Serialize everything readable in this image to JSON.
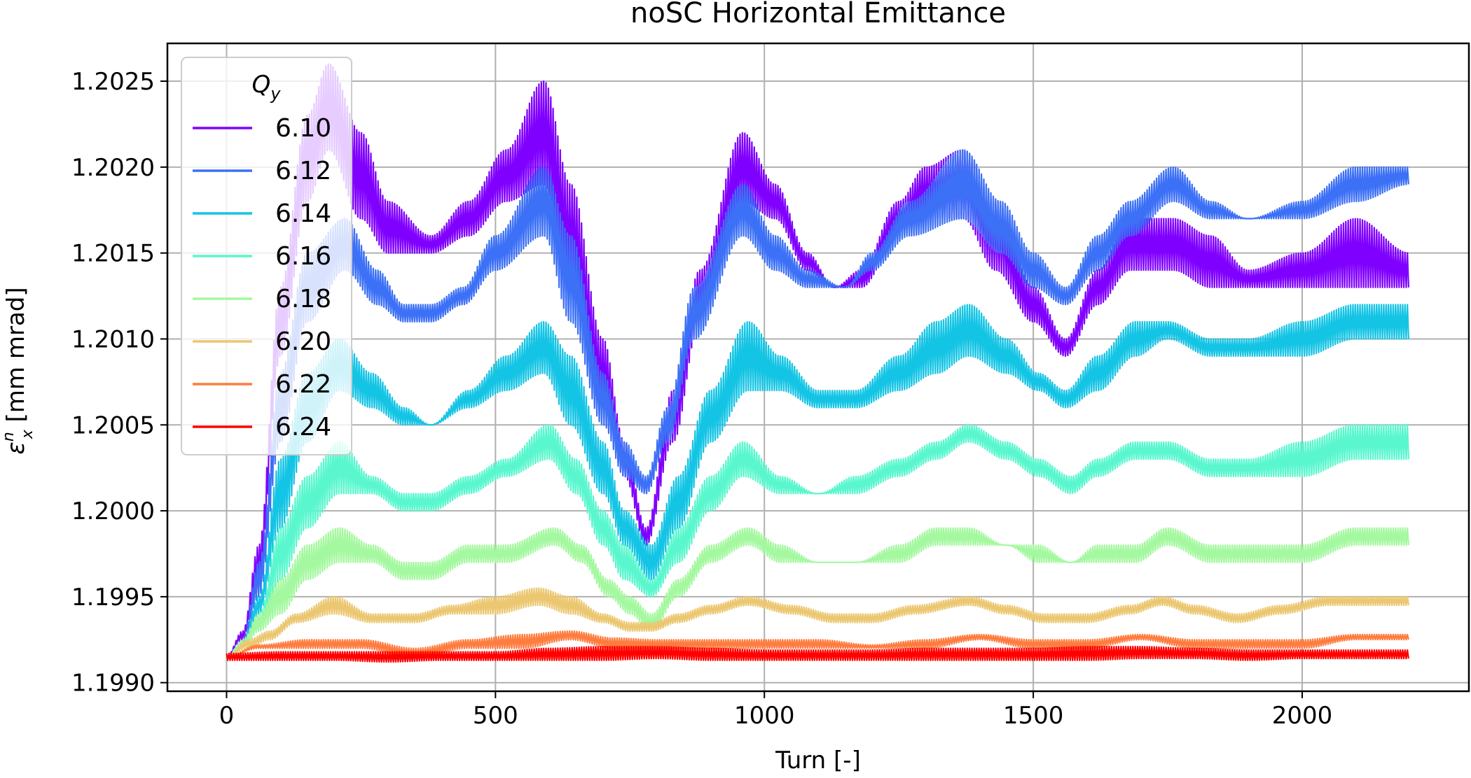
{
  "chart_data": {
    "type": "line",
    "title": "noSC Horizontal Emittance",
    "xlabel": "Turn [-]",
    "ylabel_symbol": "ε",
    "ylabel_sub": "x",
    "ylabel_sup": "n",
    "ylabel_unit": " [mm mrad]",
    "xlim": [
      -110,
      2310
    ],
    "ylim": [
      1.19895,
      1.20272
    ],
    "xticks": [
      0,
      500,
      1000,
      1500,
      2000
    ],
    "xtick_labels": [
      "0",
      "500",
      "1000",
      "1500",
      "2000"
    ],
    "yticks": [
      1.199,
      1.1995,
      1.2,
      1.2005,
      1.201,
      1.2015,
      1.202,
      1.2025
    ],
    "ytick_labels": [
      "1.1990",
      "1.1995",
      "1.2000",
      "1.2005",
      "1.2010",
      "1.2015",
      "1.2020",
      "1.2025"
    ],
    "grid": true,
    "legend": {
      "title_symbol": "Q",
      "title_sub": "y",
      "location": "upper left"
    },
    "series": [
      {
        "name": "6.10",
        "color": "#8000ff",
        "x": [
          0,
          30,
          60,
          100,
          150,
          190,
          250,
          300,
          380,
          450,
          520,
          590,
          640,
          700,
          740,
          780,
          830,
          880,
          960,
          1020,
          1080,
          1130,
          1180,
          1250,
          1300,
          1370,
          1430,
          1500,
          1560,
          1620,
          1680,
          1760,
          1830,
          1900,
          2000,
          2100,
          2200
        ],
        "lower": [
          1.19915,
          1.19925,
          1.1996,
          1.2009,
          1.2018,
          1.2021,
          1.2017,
          1.2015,
          1.2015,
          1.2016,
          1.2018,
          1.2019,
          1.2013,
          1.2006,
          1.2002,
          1.1998,
          1.2004,
          1.2011,
          1.2018,
          1.2017,
          1.2014,
          1.2013,
          1.2013,
          1.2016,
          1.2017,
          1.2017,
          1.2014,
          1.2011,
          1.2009,
          1.2012,
          1.2014,
          1.2014,
          1.2013,
          1.2013,
          1.2013,
          1.2013,
          1.2013
        ],
        "upper": [
          1.19915,
          1.1993,
          1.1998,
          1.2013,
          1.2023,
          1.2026,
          1.2022,
          1.2018,
          1.2016,
          1.2018,
          1.2021,
          1.2025,
          1.2019,
          1.201,
          1.2004,
          1.1999,
          1.2007,
          1.2014,
          1.2022,
          1.2019,
          1.2015,
          1.2013,
          1.2014,
          1.2018,
          1.202,
          1.2021,
          1.2018,
          1.2013,
          1.201,
          1.2014,
          1.2017,
          1.2017,
          1.2016,
          1.2014,
          1.2015,
          1.2017,
          1.2015
        ]
      },
      {
        "name": "6.12",
        "color": "#3c70f6",
        "x": [
          0,
          30,
          60,
          100,
          150,
          220,
          280,
          330,
          380,
          440,
          500,
          590,
          640,
          700,
          740,
          780,
          820,
          870,
          960,
          1020,
          1080,
          1150,
          1200,
          1270,
          1370,
          1440,
          1500,
          1560,
          1620,
          1680,
          1760,
          1830,
          1900,
          2000,
          2100,
          2200
        ],
        "lower": [
          1.19915,
          1.1992,
          1.1995,
          1.2004,
          1.2011,
          1.2014,
          1.2012,
          1.2011,
          1.2011,
          1.2012,
          1.2014,
          1.2016,
          1.2011,
          1.2005,
          1.2002,
          1.2001,
          1.2004,
          1.201,
          1.2016,
          1.2014,
          1.2013,
          1.2013,
          1.2014,
          1.2016,
          1.2017,
          1.2015,
          1.2013,
          1.2012,
          1.2014,
          1.2016,
          1.2018,
          1.2017,
          1.2017,
          1.2017,
          1.2018,
          1.2019
        ],
        "upper": [
          1.19915,
          1.19925,
          1.1997,
          1.2008,
          1.2015,
          1.2017,
          1.2014,
          1.2012,
          1.2012,
          1.2013,
          1.2016,
          1.202,
          1.2016,
          1.2008,
          1.2004,
          1.2002,
          1.2006,
          1.2013,
          1.2019,
          1.2016,
          1.2014,
          1.2013,
          1.2015,
          1.2018,
          1.2021,
          1.2018,
          1.2015,
          1.2013,
          1.2016,
          1.2018,
          1.202,
          1.2018,
          1.2017,
          1.2018,
          1.202,
          1.202
        ]
      },
      {
        "name": "6.14",
        "color": "#14c4e4",
        "x": [
          0,
          30,
          60,
          100,
          150,
          210,
          270,
          330,
          380,
          450,
          520,
          590,
          640,
          700,
          740,
          790,
          840,
          900,
          970,
          1030,
          1100,
          1170,
          1250,
          1320,
          1380,
          1450,
          1510,
          1560,
          1620,
          1690,
          1750,
          1830,
          1900,
          2000,
          2100,
          2200
        ],
        "lower": [
          1.19915,
          1.1992,
          1.1994,
          1.1999,
          1.2004,
          1.2007,
          1.2006,
          1.2005,
          1.2005,
          1.2006,
          1.2007,
          1.2008,
          1.2005,
          1.2001,
          1.1998,
          1.1996,
          1.1999,
          1.2004,
          1.2007,
          1.2007,
          1.2006,
          1.2006,
          1.2007,
          1.2008,
          1.2009,
          1.2008,
          1.2007,
          1.2006,
          1.2007,
          1.2009,
          1.201,
          1.2009,
          1.2009,
          1.2009,
          1.201,
          1.201
        ],
        "upper": [
          1.19915,
          1.19925,
          1.1995,
          1.2003,
          1.2008,
          1.201,
          1.2008,
          1.2006,
          1.2005,
          1.2007,
          1.2009,
          1.2011,
          1.2009,
          1.2004,
          1.2,
          1.1998,
          1.2002,
          1.2007,
          1.2011,
          1.2009,
          1.2007,
          1.2007,
          1.2009,
          1.2011,
          1.2012,
          1.201,
          1.2008,
          1.2007,
          1.2009,
          1.2011,
          1.2011,
          1.201,
          1.201,
          1.2011,
          1.2012,
          1.2012
        ]
      },
      {
        "name": "6.16",
        "color": "#5af7ce",
        "x": [
          0,
          30,
          60,
          100,
          150,
          210,
          270,
          330,
          380,
          450,
          520,
          600,
          650,
          700,
          740,
          790,
          840,
          900,
          960,
          1030,
          1100,
          1170,
          1250,
          1320,
          1380,
          1450,
          1510,
          1570,
          1620,
          1690,
          1750,
          1830,
          1900,
          2000,
          2100,
          2200
        ],
        "lower": [
          1.19915,
          1.1992,
          1.1993,
          1.1996,
          1.1999,
          1.2001,
          1.2001,
          1.2,
          1.2,
          1.2001,
          1.2002,
          1.2003,
          1.2001,
          1.1998,
          1.1996,
          1.1995,
          1.1997,
          1.2,
          1.2002,
          1.2001,
          1.2001,
          1.2001,
          1.2002,
          1.2003,
          1.2004,
          1.2003,
          1.2002,
          1.2001,
          1.2002,
          1.2003,
          1.2003,
          1.2002,
          1.2002,
          1.2002,
          1.2003,
          1.2003
        ],
        "upper": [
          1.19915,
          1.19925,
          1.1994,
          1.1999,
          1.2002,
          1.2004,
          1.2002,
          1.2001,
          1.2001,
          1.2002,
          1.2003,
          1.2005,
          1.2003,
          1.2,
          1.1998,
          1.1996,
          1.1999,
          1.2002,
          1.2004,
          1.2002,
          1.2001,
          1.2002,
          1.2003,
          1.2004,
          1.2005,
          1.2004,
          1.2003,
          1.2002,
          1.2003,
          1.2004,
          1.2004,
          1.2003,
          1.2003,
          1.2004,
          1.2005,
          1.2005
        ]
      },
      {
        "name": "6.18",
        "color": "#a4f89f",
        "x": [
          0,
          30,
          60,
          100,
          150,
          210,
          270,
          330,
          380,
          450,
          520,
          610,
          660,
          710,
          750,
          790,
          840,
          900,
          970,
          1030,
          1100,
          1170,
          1250,
          1320,
          1380,
          1450,
          1510,
          1570,
          1620,
          1690,
          1750,
          1830,
          1900,
          2000,
          2100,
          2200
        ],
        "lower": [
          1.19915,
          1.1992,
          1.1993,
          1.1994,
          1.1996,
          1.1997,
          1.1997,
          1.1996,
          1.1996,
          1.1997,
          1.1997,
          1.1998,
          1.1997,
          1.1995,
          1.1994,
          1.1993,
          1.1995,
          1.1997,
          1.1998,
          1.1997,
          1.1997,
          1.1997,
          1.1997,
          1.1998,
          1.1998,
          1.1998,
          1.1997,
          1.1997,
          1.1997,
          1.1997,
          1.1998,
          1.1997,
          1.1997,
          1.1997,
          1.1998,
          1.1998
        ],
        "upper": [
          1.19915,
          1.19925,
          1.1994,
          1.1996,
          1.1998,
          1.1999,
          1.1998,
          1.1997,
          1.1997,
          1.1998,
          1.1998,
          1.1999,
          1.1998,
          1.1996,
          1.1995,
          1.1994,
          1.1996,
          1.1998,
          1.1999,
          1.1998,
          1.1997,
          1.1997,
          1.1998,
          1.1999,
          1.1999,
          1.1998,
          1.1998,
          1.1997,
          1.1998,
          1.1998,
          1.1999,
          1.1998,
          1.1998,
          1.1998,
          1.1999,
          1.1999
        ]
      },
      {
        "name": "6.20",
        "color": "#ecc771",
        "x": [
          0,
          40,
          80,
          130,
          200,
          270,
          350,
          420,
          500,
          580,
          640,
          700,
          750,
          790,
          840,
          900,
          970,
          1050,
          1130,
          1200,
          1280,
          1380,
          1450,
          1520,
          1600,
          1680,
          1740,
          1800,
          1880,
          1960,
          2050,
          2130,
          2200
        ],
        "lower": [
          1.19915,
          1.1992,
          1.19925,
          1.19935,
          1.1994,
          1.19935,
          1.19935,
          1.1994,
          1.1994,
          1.19945,
          1.1994,
          1.19935,
          1.1993,
          1.1993,
          1.19935,
          1.1994,
          1.19945,
          1.1994,
          1.19935,
          1.19935,
          1.1994,
          1.19945,
          1.1994,
          1.19935,
          1.19935,
          1.1994,
          1.19945,
          1.1994,
          1.19935,
          1.1994,
          1.19945,
          1.19945,
          1.19945
        ],
        "upper": [
          1.19915,
          1.19925,
          1.1993,
          1.1994,
          1.1995,
          1.1994,
          1.1994,
          1.19945,
          1.1995,
          1.19955,
          1.1995,
          1.1994,
          1.19935,
          1.19935,
          1.1994,
          1.19945,
          1.1995,
          1.19945,
          1.1994,
          1.1994,
          1.19945,
          1.1995,
          1.19945,
          1.1994,
          1.1994,
          1.19945,
          1.1995,
          1.19945,
          1.1994,
          1.19945,
          1.1995,
          1.1995,
          1.1995
        ]
      },
      {
        "name": "6.22",
        "color": "#fe7c3e",
        "x": [
          0,
          60,
          150,
          250,
          350,
          450,
          550,
          640,
          720,
          800,
          900,
          1000,
          1100,
          1200,
          1300,
          1400,
          1500,
          1600,
          1700,
          1800,
          1900,
          2000,
          2100,
          2200
        ],
        "lower": [
          1.19915,
          1.1992,
          1.1992,
          1.1992,
          1.19915,
          1.1992,
          1.1992,
          1.19925,
          1.1992,
          1.1992,
          1.1992,
          1.1992,
          1.1992,
          1.1992,
          1.1992,
          1.19925,
          1.1992,
          1.1992,
          1.19925,
          1.1992,
          1.1992,
          1.1992,
          1.19925,
          1.19925
        ],
        "upper": [
          1.19915,
          1.19922,
          1.19925,
          1.19925,
          1.1992,
          1.19925,
          1.19928,
          1.1993,
          1.19926,
          1.19925,
          1.19925,
          1.19925,
          1.19925,
          1.19922,
          1.19925,
          1.19928,
          1.19925,
          1.19925,
          1.19928,
          1.19925,
          1.19925,
          1.19925,
          1.19928,
          1.19928
        ]
      },
      {
        "name": "6.24",
        "color": "#ff0000",
        "x": [
          0,
          100,
          200,
          300,
          400,
          500,
          600,
          700,
          800,
          900,
          1000,
          1100,
          1200,
          1300,
          1400,
          1500,
          1600,
          1700,
          1800,
          1900,
          2000,
          2100,
          2200
        ],
        "lower": [
          1.19913,
          1.19913,
          1.19913,
          1.19912,
          1.19913,
          1.19913,
          1.19913,
          1.19913,
          1.19914,
          1.19913,
          1.19913,
          1.19913,
          1.19913,
          1.19913,
          1.19913,
          1.19913,
          1.19913,
          1.19914,
          1.19914,
          1.19913,
          1.19914,
          1.19914,
          1.19914
        ],
        "upper": [
          1.19917,
          1.19918,
          1.19918,
          1.19918,
          1.19918,
          1.19918,
          1.1992,
          1.19921,
          1.19921,
          1.1992,
          1.19919,
          1.19919,
          1.19919,
          1.1992,
          1.1992,
          1.1992,
          1.19921,
          1.19921,
          1.1992,
          1.19919,
          1.19919,
          1.19919,
          1.19919
        ]
      }
    ]
  }
}
